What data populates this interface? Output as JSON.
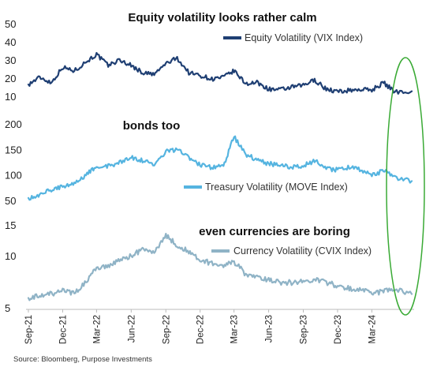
{
  "chart_data": [
    {
      "type": "line",
      "title": "Equity volatility looks rather calm",
      "series": [
        {
          "name": "Equity Volatility (VIX Index)",
          "color": "#1f3f73"
        }
      ],
      "ylim": [
        10,
        50
      ],
      "yticks": [
        "10",
        "20",
        "30",
        "40",
        "50"
      ],
      "points": [
        [
          "2021-09-01",
          16.5
        ],
        [
          "2021-10-01",
          20.5
        ],
        [
          "2021-11-01",
          17.5
        ],
        [
          "2021-12-01",
          26
        ],
        [
          "2022-01-01",
          24
        ],
        [
          "2022-02-01",
          29
        ],
        [
          "2022-03-01",
          33
        ],
        [
          "2022-04-01",
          27
        ],
        [
          "2022-05-01",
          30
        ],
        [
          "2022-06-01",
          27
        ],
        [
          "2022-07-01",
          23
        ],
        [
          "2022-08-01",
          22
        ],
        [
          "2022-09-01",
          28
        ],
        [
          "2022-10-01",
          31
        ],
        [
          "2022-11-01",
          23
        ],
        [
          "2022-12-01",
          21.5
        ],
        [
          "2023-01-01",
          19.5
        ],
        [
          "2023-02-01",
          20.5
        ],
        [
          "2023-03-01",
          24
        ],
        [
          "2023-04-01",
          17
        ],
        [
          "2023-05-01",
          17.5
        ],
        [
          "2023-06-01",
          14
        ],
        [
          "2023-07-01",
          13.5
        ],
        [
          "2023-08-01",
          15
        ],
        [
          "2023-09-01",
          16
        ],
        [
          "2023-10-01",
          19
        ],
        [
          "2023-11-01",
          14
        ],
        [
          "2023-12-01",
          12.5
        ],
        [
          "2024-01-01",
          13.3
        ],
        [
          "2024-02-01",
          13.8
        ],
        [
          "2024-03-01",
          13.5
        ],
        [
          "2024-04-01",
          17.5
        ],
        [
          "2024-05-01",
          12.5
        ],
        [
          "2024-06-15",
          12.8
        ]
      ]
    },
    {
      "type": "line",
      "title": "bonds too",
      "series": [
        {
          "name": "Treasury Volatility (MOVE Index)",
          "color": "#55b4e0"
        }
      ],
      "ylim": [
        50,
        200
      ],
      "yticks": [
        "50",
        "100",
        "150",
        "200"
      ],
      "points": [
        [
          "2021-09-01",
          55
        ],
        [
          "2021-10-01",
          62
        ],
        [
          "2021-11-01",
          70
        ],
        [
          "2021-12-01",
          78
        ],
        [
          "2022-01-01",
          85
        ],
        [
          "2022-02-01",
          100
        ],
        [
          "2022-03-01",
          118
        ],
        [
          "2022-04-01",
          118
        ],
        [
          "2022-05-01",
          124
        ],
        [
          "2022-06-01",
          135
        ],
        [
          "2022-07-01",
          128
        ],
        [
          "2022-08-01",
          120
        ],
        [
          "2022-09-01",
          145
        ],
        [
          "2022-10-01",
          150
        ],
        [
          "2022-11-01",
          135
        ],
        [
          "2022-12-01",
          120
        ],
        [
          "2023-01-01",
          115
        ],
        [
          "2023-02-01",
          118
        ],
        [
          "2023-03-01",
          175
        ],
        [
          "2023-04-01",
          140
        ],
        [
          "2023-05-01",
          130
        ],
        [
          "2023-06-01",
          122
        ],
        [
          "2023-07-01",
          120
        ],
        [
          "2023-08-01",
          115
        ],
        [
          "2023-09-01",
          118
        ],
        [
          "2023-10-01",
          128
        ],
        [
          "2023-11-01",
          112
        ],
        [
          "2023-12-01",
          110
        ],
        [
          "2024-01-01",
          115
        ],
        [
          "2024-02-01",
          110
        ],
        [
          "2024-03-01",
          100
        ],
        [
          "2024-04-01",
          108
        ],
        [
          "2024-05-01",
          95
        ],
        [
          "2024-06-15",
          88
        ]
      ]
    },
    {
      "type": "line",
      "title": "even currencies are boring",
      "series": [
        {
          "name": "Currency Volatility (CVIX Index)",
          "color": "#8fb3c6"
        }
      ],
      "scale": "log",
      "ylim": [
        5,
        15
      ],
      "yticks": [
        "5",
        "10",
        "15"
      ],
      "points": [
        [
          "2021-09-01",
          5.7
        ],
        [
          "2021-10-01",
          5.9
        ],
        [
          "2021-11-01",
          6.0
        ],
        [
          "2021-12-01",
          6.4
        ],
        [
          "2022-01-01",
          6.0
        ],
        [
          "2022-02-01",
          7.0
        ],
        [
          "2022-03-01",
          8.5
        ],
        [
          "2022-04-01",
          8.8
        ],
        [
          "2022-05-01",
          9.5
        ],
        [
          "2022-06-01",
          10.0
        ],
        [
          "2022-07-01",
          10.8
        ],
        [
          "2022-08-01",
          10.5
        ],
        [
          "2022-09-01",
          13.0
        ],
        [
          "2022-10-01",
          11.5
        ],
        [
          "2022-11-01",
          10.5
        ],
        [
          "2022-12-01",
          9.5
        ],
        [
          "2023-01-01",
          9.0
        ],
        [
          "2023-02-01",
          8.8
        ],
        [
          "2023-03-01",
          9.2
        ],
        [
          "2023-04-01",
          7.8
        ],
        [
          "2023-05-01",
          7.5
        ],
        [
          "2023-06-01",
          7.2
        ],
        [
          "2023-07-01",
          7.0
        ],
        [
          "2023-08-01",
          7.0
        ],
        [
          "2023-09-01",
          7.1
        ],
        [
          "2023-10-01",
          7.3
        ],
        [
          "2023-11-01",
          7.0
        ],
        [
          "2023-12-01",
          6.7
        ],
        [
          "2024-01-01",
          6.5
        ],
        [
          "2024-02-01",
          6.3
        ],
        [
          "2024-03-01",
          6.1
        ],
        [
          "2024-04-01",
          6.2
        ],
        [
          "2024-05-01",
          6.4
        ],
        [
          "2024-06-15",
          6.0
        ]
      ]
    }
  ],
  "x_axis": {
    "range": [
      "2021-09-01",
      "2024-06-15"
    ],
    "ticks": [
      {
        "label": "Sep-21",
        "date": "2021-09-01"
      },
      {
        "label": "Dec-21",
        "date": "2021-12-01"
      },
      {
        "label": "Mar-22",
        "date": "2022-03-01"
      },
      {
        "label": "Jun-22",
        "date": "2022-06-01"
      },
      {
        "label": "Sep-22",
        "date": "2022-09-01"
      },
      {
        "label": "Dec-22",
        "date": "2022-12-01"
      },
      {
        "label": "Mar-23",
        "date": "2023-03-01"
      },
      {
        "label": "Jun-23",
        "date": "2023-06-01"
      },
      {
        "label": "Sep-23",
        "date": "2023-09-01"
      },
      {
        "label": "Dec-23",
        "date": "2023-12-01"
      },
      {
        "label": "Mar-24",
        "date": "2024-03-01"
      }
    ]
  },
  "annotation": {
    "shape": "ellipse",
    "color": "#3aaa35",
    "from_date": "2024-04-15",
    "to_date": "2024-06-15"
  },
  "source": "Source: Bloomberg, Purpose Investments"
}
